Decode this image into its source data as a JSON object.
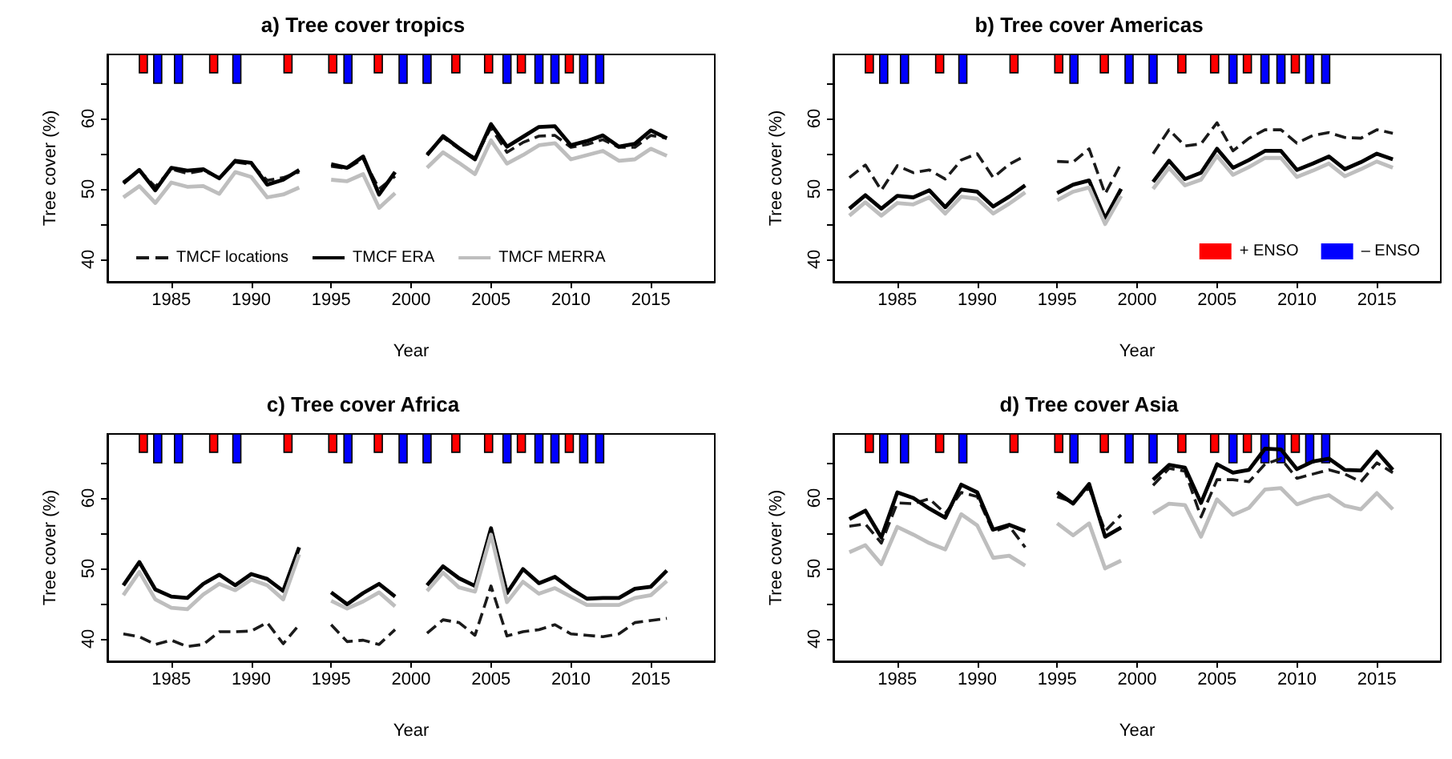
{
  "chart_data": [
    {
      "type": "line",
      "title": "a) Tree cover tropics",
      "xlabel": "Year",
      "ylabel": "Tree cover (%)",
      "x": [
        1982,
        1983,
        1984,
        1985,
        1986,
        1987,
        1988,
        1989,
        1990,
        1991,
        1992,
        1993,
        1994,
        1995,
        1996,
        1997,
        1998,
        1999,
        2000,
        2001,
        2002,
        2003,
        2004,
        2005,
        2006,
        2007,
        2008,
        2009,
        2010,
        2011,
        2012,
        2013,
        2014,
        2015,
        2016
      ],
      "series": [
        {
          "name": "TMCF locations",
          "color": "#1a1a1a",
          "line_style": "dashed",
          "values": [
            51.0,
            52.6,
            50.3,
            52.8,
            52.2,
            52.6,
            51.6,
            53.8,
            53.5,
            51.2,
            51.6,
            52.4,
            null,
            53.2,
            52.9,
            54.3,
            50.0,
            51.8,
            null,
            55.0,
            57.3,
            55.7,
            54.4,
            58.7,
            55.2,
            56.6,
            57.5,
            57.6,
            55.9,
            56.3,
            57.0,
            55.9,
            55.9,
            57.6,
            57.2
          ]
        },
        {
          "name": "TMCF ERA",
          "color": "#000000",
          "line_style": "solid",
          "values": [
            50.8,
            52.7,
            49.8,
            53.0,
            52.6,
            52.8,
            51.5,
            54.0,
            53.7,
            50.6,
            51.3,
            52.7,
            null,
            53.5,
            53.0,
            54.6,
            49.2,
            52.4,
            null,
            54.8,
            57.5,
            55.8,
            54.2,
            59.2,
            56.0,
            57.4,
            58.8,
            58.9,
            56.2,
            56.8,
            57.6,
            56.0,
            56.4,
            58.3,
            57.2
          ]
        },
        {
          "name": "TMCF MERRA",
          "color": "#bebebe",
          "line_style": "solid",
          "values": [
            48.8,
            50.4,
            48.0,
            50.9,
            50.3,
            50.4,
            49.3,
            52.4,
            51.7,
            48.8,
            49.2,
            50.2,
            null,
            51.3,
            51.1,
            52.1,
            47.3,
            49.4,
            null,
            53.0,
            55.2,
            53.7,
            52.1,
            56.9,
            53.6,
            54.8,
            56.2,
            56.5,
            54.2,
            54.8,
            55.4,
            54.0,
            54.2,
            55.7,
            54.7
          ]
        },
        {
          "type": "bar",
          "color": "#ff0000",
          "x": [
            1983.25,
            1987.65,
            1992.3,
            1995.1,
            1997.95,
            2002.8,
            2004.85,
            2006.9,
            2009.9
          ],
          "base": [
            66.5,
            66.5,
            66.5,
            66.5,
            66.5,
            66.5,
            66.5,
            66.5,
            66.5
          ],
          "values": [
            2.6,
            2.6,
            2.6,
            2.6,
            2.6,
            2.6,
            2.6,
            2.6,
            2.6
          ]
        },
        {
          "type": "bar",
          "color": "#0000ff",
          "x": [
            1984.15,
            1985.45,
            1989.1,
            1996.05,
            1999.5,
            2001.0,
            2006.0,
            2008.0,
            2009.0,
            2010.8,
            2011.8
          ],
          "base": [
            65,
            65,
            65,
            65,
            65,
            65,
            65,
            65,
            65,
            65,
            65
          ],
          "values": [
            4.1,
            4.1,
            4.1,
            4.1,
            4.1,
            4.1,
            4.1,
            4.1,
            4.1,
            4.1,
            4.1
          ]
        }
      ],
      "xlim": [
        1981,
        2019
      ],
      "xticks": [
        1985,
        1990,
        1995,
        2000,
        2005,
        2010,
        2015
      ],
      "ylim": [
        36.8,
        69.1
      ],
      "yticks": [
        40,
        {
          "value": 45,
          "label": null
        },
        50,
        {
          "value": 55,
          "label": null
        },
        60,
        {
          "value": 65,
          "label": null
        }
      ],
      "grid": false,
      "marker": "none",
      "legend": "bottom"
    },
    {
      "type": "line",
      "title": "b) Tree cover Americas",
      "xlabel": "Year",
      "ylabel": "Tree cover (%)",
      "x": [
        1982,
        1983,
        1984,
        1985,
        1986,
        1987,
        1988,
        1989,
        1990,
        1991,
        1992,
        1993,
        1994,
        1995,
        1996,
        1997,
        1998,
        1999,
        2000,
        2001,
        2002,
        2003,
        2004,
        2005,
        2006,
        2007,
        2008,
        2009,
        2010,
        2011,
        2012,
        2013,
        2014,
        2015,
        2016
      ],
      "series": [
        {
          "color": "#1a1a1a",
          "line_style": "dashed",
          "values": [
            51.6,
            53.4,
            49.8,
            53.3,
            52.3,
            52.7,
            51.4,
            54.1,
            55.0,
            51.6,
            53.5,
            54.7,
            null,
            53.9,
            53.8,
            55.7,
            49.3,
            53.6,
            null,
            55.0,
            58.4,
            56.1,
            56.4,
            59.4,
            55.4,
            57.2,
            58.4,
            58.4,
            56.5,
            57.6,
            58.0,
            57.3,
            57.2,
            58.4,
            57.9
          ]
        },
        {
          "color": "#000000",
          "line_style": "solid",
          "values": [
            47.2,
            49.1,
            47.2,
            49.0,
            48.8,
            49.8,
            47.4,
            49.9,
            49.6,
            47.5,
            48.9,
            50.5,
            null,
            49.4,
            50.6,
            51.2,
            45.8,
            50.0,
            null,
            51.0,
            54.0,
            51.4,
            52.3,
            55.7,
            53.0,
            54.1,
            55.4,
            55.4,
            52.7,
            53.6,
            54.6,
            52.8,
            53.8,
            55.0,
            54.2
          ]
        },
        {
          "color": "#bebebe",
          "line_style": "solid",
          "values": [
            46.2,
            48.1,
            46.2,
            48.0,
            47.8,
            48.8,
            46.5,
            48.9,
            48.6,
            46.5,
            47.9,
            49.5,
            null,
            48.4,
            49.6,
            50.2,
            45.0,
            49.0,
            null,
            50.0,
            53.0,
            50.5,
            51.3,
            54.7,
            52.0,
            53.1,
            54.4,
            54.4,
            51.7,
            52.6,
            53.6,
            51.8,
            52.8,
            53.9,
            53.0
          ]
        },
        {
          "type": "bar",
          "name": "+ ENSO",
          "color": "#ff0000",
          "x": [
            1983.25,
            1987.65,
            1992.3,
            1995.1,
            1997.95,
            2002.8,
            2004.85,
            2006.9,
            2009.9
          ],
          "base": [
            66.5,
            66.5,
            66.5,
            66.5,
            66.5,
            66.5,
            66.5,
            66.5,
            66.5
          ],
          "values": [
            2.6,
            2.6,
            2.6,
            2.6,
            2.6,
            2.6,
            2.6,
            2.6,
            2.6
          ]
        },
        {
          "type": "bar",
          "name": "– ENSO",
          "color": "#0000ff",
          "x": [
            1984.15,
            1985.45,
            1989.1,
            1996.05,
            1999.5,
            2001.0,
            2006.0,
            2008.0,
            2009.0,
            2010.8,
            2011.8
          ],
          "base": [
            65,
            65,
            65,
            65,
            65,
            65,
            65,
            65,
            65,
            65,
            65
          ],
          "values": [
            4.1,
            4.1,
            4.1,
            4.1,
            4.1,
            4.1,
            4.1,
            4.1,
            4.1,
            4.1,
            4.1
          ]
        }
      ],
      "xlim": [
        1981,
        2019
      ],
      "xticks": [
        1985,
        1990,
        1995,
        2000,
        2005,
        2010,
        2015
      ],
      "ylim": [
        36.8,
        69.1
      ],
      "yticks": [
        40,
        {
          "value": 45,
          "label": null
        },
        50,
        {
          "value": 55,
          "label": null
        },
        60,
        {
          "value": 65,
          "label": null
        }
      ],
      "grid": false,
      "marker": "none",
      "legend": "bottom right"
    },
    {
      "type": "line",
      "title": "c) Tree cover Africa",
      "xlabel": "Year",
      "ylabel": "Tree cover (%)",
      "x": [
        1982,
        1983,
        1984,
        1985,
        1986,
        1987,
        1988,
        1989,
        1990,
        1991,
        1992,
        1993,
        1994,
        1995,
        1996,
        1997,
        1998,
        1999,
        2000,
        2001,
        2002,
        2003,
        2004,
        2005,
        2006,
        2007,
        2008,
        2009,
        2010,
        2011,
        2012,
        2013,
        2014,
        2015,
        2016
      ],
      "series": [
        {
          "color": "#1a1a1a",
          "line_style": "dashed",
          "values": [
            40.7,
            40.3,
            39.2,
            39.8,
            38.9,
            39.2,
            41.0,
            41.0,
            41.1,
            42.3,
            39.3,
            42.0,
            null,
            42.0,
            39.6,
            39.8,
            39.2,
            41.3,
            null,
            40.8,
            42.7,
            42.3,
            40.5,
            47.5,
            40.4,
            41.0,
            41.3,
            42.0,
            40.7,
            40.5,
            40.3,
            40.7,
            42.3,
            42.6,
            42.9
          ]
        },
        {
          "color": "#000000",
          "line_style": "solid",
          "values": [
            47.6,
            50.9,
            47.0,
            46.0,
            45.8,
            47.8,
            49.1,
            47.6,
            49.2,
            48.5,
            46.8,
            53.0,
            null,
            46.6,
            44.9,
            46.5,
            47.8,
            46.0,
            null,
            47.6,
            50.3,
            48.6,
            47.5,
            55.7,
            46.5,
            49.9,
            47.9,
            48.8,
            47.1,
            45.7,
            45.8,
            45.8,
            47.1,
            47.4,
            49.7
          ]
        },
        {
          "color": "#bebebe",
          "line_style": "solid",
          "values": [
            46.2,
            49.5,
            45.6,
            44.4,
            44.2,
            46.3,
            47.8,
            46.9,
            48.4,
            47.6,
            45.6,
            52.0,
            null,
            45.4,
            44.3,
            45.3,
            46.6,
            44.6,
            null,
            46.8,
            49.4,
            47.3,
            46.7,
            54.8,
            45.2,
            48.1,
            46.4,
            47.2,
            46.0,
            44.8,
            44.8,
            44.8,
            45.8,
            46.2,
            48.2
          ]
        },
        {
          "type": "bar",
          "color": "#ff0000",
          "x": [
            1983.25,
            1987.65,
            1992.3,
            1995.1,
            1997.95,
            2002.8,
            2004.85,
            2006.9,
            2009.9
          ],
          "base": [
            66.5,
            66.5,
            66.5,
            66.5,
            66.5,
            66.5,
            66.5,
            66.5,
            66.5
          ],
          "values": [
            2.6,
            2.6,
            2.6,
            2.6,
            2.6,
            2.6,
            2.6,
            2.6,
            2.6
          ]
        },
        {
          "type": "bar",
          "color": "#0000ff",
          "x": [
            1984.15,
            1985.45,
            1989.1,
            1996.05,
            1999.5,
            2001.0,
            2006.0,
            2008.0,
            2009.0,
            2010.8,
            2011.8
          ],
          "base": [
            65,
            65,
            65,
            65,
            65,
            65,
            65,
            65,
            65,
            65,
            65
          ],
          "values": [
            4.1,
            4.1,
            4.1,
            4.1,
            4.1,
            4.1,
            4.1,
            4.1,
            4.1,
            4.1,
            4.1
          ]
        }
      ],
      "xlim": [
        1981,
        2019
      ],
      "xticks": [
        1985,
        1990,
        1995,
        2000,
        2005,
        2010,
        2015
      ],
      "ylim": [
        36.8,
        69.1
      ],
      "yticks": [
        40,
        {
          "value": 45,
          "label": null
        },
        50,
        {
          "value": 55,
          "label": null
        },
        60,
        {
          "value": 65,
          "label": null
        }
      ],
      "grid": false,
      "marker": "none"
    },
    {
      "type": "line",
      "title": "d) Tree cover Asia",
      "xlabel": "Year",
      "ylabel": "Tree cover (%)",
      "x": [
        1982,
        1983,
        1984,
        1985,
        1986,
        1987,
        1988,
        1989,
        1990,
        1991,
        1992,
        1993,
        1994,
        1995,
        1996,
        1997,
        1998,
        1999,
        2000,
        2001,
        2002,
        2003,
        2004,
        2005,
        2006,
        2007,
        2008,
        2009,
        2010,
        2011,
        2012,
        2013,
        2014,
        2015,
        2016
      ],
      "series": [
        {
          "color": "#1a1a1a",
          "line_style": "dashed",
          "values": [
            56.0,
            56.3,
            53.6,
            59.3,
            59.2,
            59.9,
            57.8,
            60.8,
            60.2,
            55.2,
            56.0,
            53.0,
            null,
            60.2,
            59.4,
            61.5,
            55.3,
            57.6,
            null,
            61.8,
            64.2,
            63.8,
            57.3,
            62.6,
            62.6,
            62.3,
            64.8,
            65.6,
            62.8,
            63.4,
            64.0,
            63.4,
            62.3,
            65.0,
            63.6
          ]
        },
        {
          "color": "#000000",
          "line_style": "solid",
          "values": [
            57.0,
            58.2,
            54.4,
            60.8,
            60.0,
            58.5,
            57.2,
            61.9,
            60.8,
            55.5,
            56.2,
            55.3,
            null,
            60.8,
            59.2,
            62.0,
            54.5,
            55.8,
            null,
            62.6,
            64.7,
            64.3,
            59.3,
            64.8,
            63.6,
            64.0,
            67.0,
            66.9,
            64.1,
            65.2,
            65.6,
            64.0,
            63.9,
            66.6,
            64.0
          ]
        },
        {
          "color": "#bebebe",
          "line_style": "solid",
          "values": [
            52.3,
            53.3,
            50.6,
            55.9,
            54.8,
            53.6,
            52.7,
            57.7,
            56.1,
            51.5,
            51.8,
            50.4,
            null,
            56.4,
            54.7,
            56.4,
            50.0,
            51.1,
            null,
            57.8,
            59.2,
            59.0,
            54.5,
            59.8,
            57.6,
            58.6,
            61.2,
            61.4,
            59.1,
            59.9,
            60.4,
            58.9,
            58.4,
            60.7,
            58.4
          ]
        },
        {
          "type": "bar",
          "color": "#ff0000",
          "x": [
            1983.25,
            1987.65,
            1992.3,
            1995.1,
            1997.95,
            2002.8,
            2004.85,
            2006.9,
            2009.9
          ],
          "base": [
            66.5,
            66.5,
            66.5,
            66.5,
            66.5,
            66.5,
            66.5,
            66.5,
            66.5
          ],
          "values": [
            2.6,
            2.6,
            2.6,
            2.6,
            2.6,
            2.6,
            2.6,
            2.6,
            2.6
          ]
        },
        {
          "type": "bar",
          "color": "#0000ff",
          "x": [
            1984.15,
            1985.45,
            1989.1,
            1996.05,
            1999.5,
            2001.0,
            2006.0,
            2008.0,
            2009.0,
            2010.8,
            2011.8
          ],
          "base": [
            65,
            65,
            65,
            65,
            65,
            65,
            65,
            65,
            65,
            65,
            65
          ],
          "values": [
            4.1,
            4.1,
            4.1,
            4.1,
            4.1,
            4.1,
            4.1,
            4.1,
            4.1,
            4.1,
            4.1
          ]
        }
      ],
      "xlim": [
        1981,
        2019
      ],
      "xticks": [
        1985,
        1990,
        1995,
        2000,
        2005,
        2010,
        2015
      ],
      "ylim": [
        36.8,
        69.1
      ],
      "yticks": [
        40,
        {
          "value": 45,
          "label": null
        },
        50,
        {
          "value": 55,
          "label": null
        },
        60,
        {
          "value": 65,
          "label": null
        }
      ],
      "grid": false,
      "marker": "none"
    }
  ]
}
